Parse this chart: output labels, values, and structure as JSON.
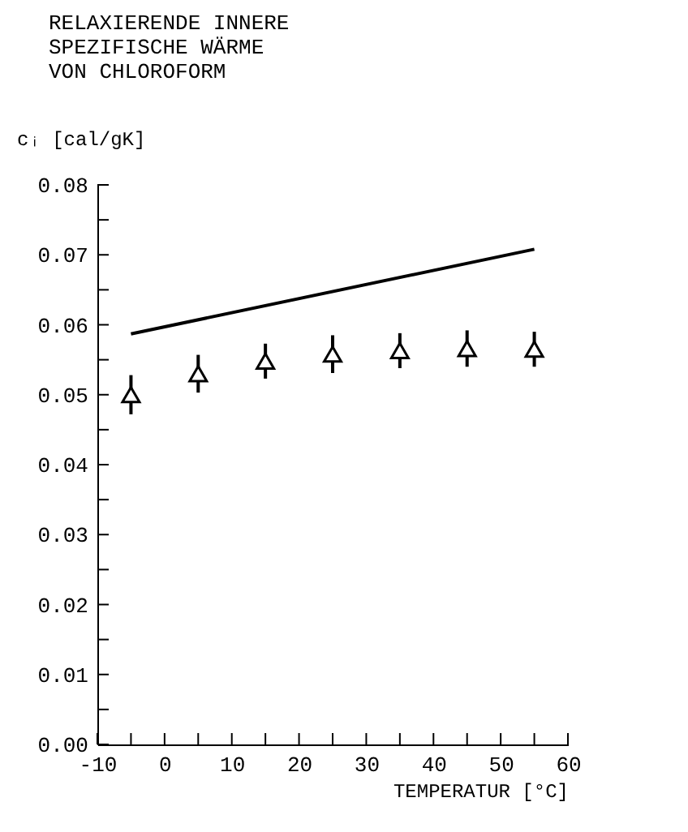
{
  "chart_data": {
    "type": "scatter",
    "title": [
      "RELAXIERENDE INNERE",
      "SPEZIFISCHE WÄRME",
      "VON CHLOROFORM"
    ],
    "xlabel": "TEMPERATUR  [°C]",
    "ylabel": "cᵢ [cal/gK]",
    "xlim": [
      -10,
      60
    ],
    "ylim": [
      0,
      0.08
    ],
    "xticks": [
      -10,
      {
        "value": -5,
        "label": null
      },
      0,
      {
        "value": 5,
        "label": null
      },
      10,
      {
        "value": 15,
        "label": null
      },
      20,
      {
        "value": 25,
        "label": null
      },
      30,
      {
        "value": 35,
        "label": null
      },
      40,
      {
        "value": 45,
        "label": null
      },
      50,
      {
        "value": 55,
        "label": null
      },
      60
    ],
    "yticks": [
      {
        "value": 0,
        "label": "0.00"
      },
      {
        "value": 0.005,
        "label": null
      },
      0.01,
      {
        "value": 0.015,
        "label": null
      },
      0.02,
      {
        "value": 0.025,
        "label": null
      },
      0.03,
      {
        "value": 0.035,
        "label": null
      },
      0.04,
      {
        "value": 0.045,
        "label": null
      },
      0.05,
      {
        "value": 0.055,
        "label": null
      },
      0.06,
      {
        "value": 0.065,
        "label": null
      },
      0.07,
      {
        "value": 0.075,
        "label": null
      },
      0.08
    ],
    "grid": false,
    "series": [
      {
        "type": "line",
        "color": "#000000",
        "line_style": "solid",
        "x": [
          -5,
          55
        ],
        "values": [
          0.0587,
          0.0708
        ]
      },
      {
        "type": "scatter",
        "color": "#000000",
        "marker": "triangle",
        "x": [
          -5,
          5,
          15,
          25,
          35,
          45,
          55
        ],
        "values": [
          0.05,
          0.053,
          0.0548,
          0.0558,
          0.0563,
          0.0566,
          0.0565
        ],
        "errors": [
          0.0028,
          0.0027,
          0.0025,
          0.0027,
          0.0025,
          0.0026,
          0.0025
        ]
      }
    ]
  }
}
